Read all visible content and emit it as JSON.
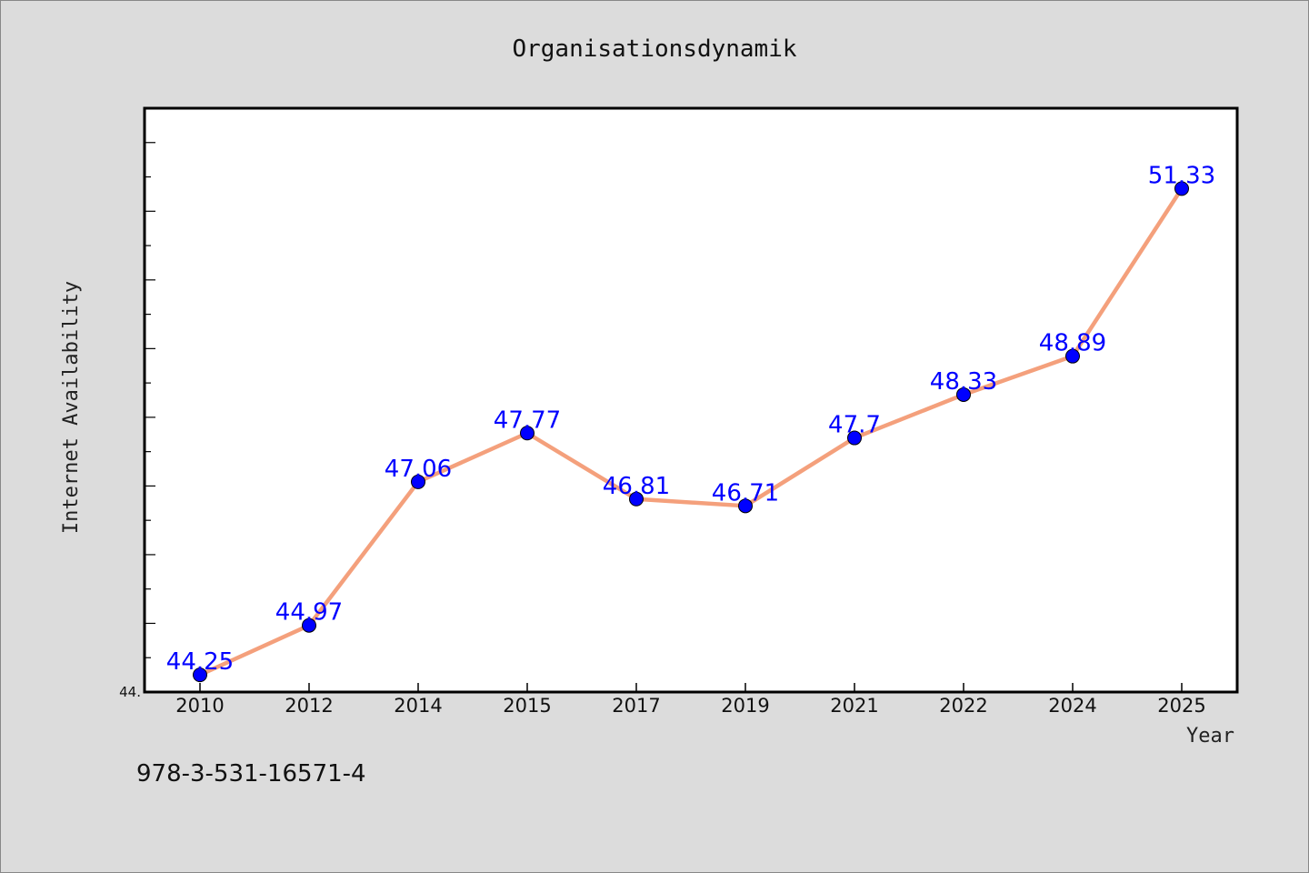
{
  "chart_data": {
    "type": "line",
    "title": "Organisationsdynamik",
    "xlabel": "Year",
    "ylabel": "Internet Availability",
    "categories": [
      "2010",
      "2012",
      "2014",
      "2015",
      "2017",
      "2019",
      "2021",
      "2022",
      "2024",
      "2025"
    ],
    "series": [
      {
        "values": [
          44.25,
          44.97,
          47.06,
          47.77,
          46.81,
          46.71,
          47.7,
          48.33,
          48.89,
          51.33
        ],
        "labels": [
          "44.25",
          "44.97",
          "47.06",
          "47.77",
          "46.81",
          "46.71",
          "47.7",
          "48.33",
          "48.89",
          "51.33"
        ],
        "line_color": "#f4a07c",
        "marker_color": "#0000ff"
      }
    ],
    "ylim": [
      44,
      52.5
    ],
    "ytick_label": "44.",
    "grid": false,
    "legend": "none"
  },
  "footer": {
    "isbn": "978-3-531-16571-4"
  }
}
